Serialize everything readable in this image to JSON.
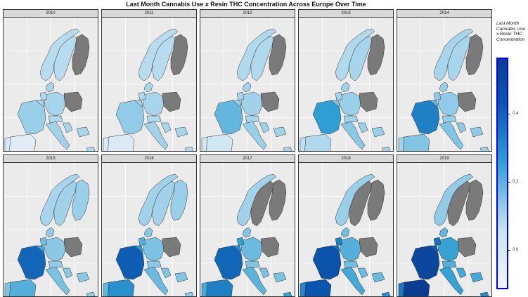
{
  "chart_data": {
    "type": "choropleth-facets",
    "title": "Last Month Cannabis Use x Resin THC Concentration Across Europe Over Time",
    "legend": {
      "title": "Last Month Cannabis Use x Resin THC Concentration",
      "ticks": [
        "0.0",
        "0.2",
        "0.4"
      ],
      "range": [
        -0.12,
        0.55
      ],
      "position": "right"
    },
    "no_data_color": "#7a7a7a",
    "countries": [
      "Norway",
      "Sweden",
      "Finland",
      "Denmark",
      "Germany",
      "Poland",
      "Netherlands",
      "Belgium",
      "France",
      "Austria",
      "Italy",
      "Spain",
      "Portugal",
      "Croatia",
      "Bulgaria",
      "Cyprus"
    ],
    "panels": [
      {
        "year": "2010",
        "values": {
          "Norway": 0.07,
          "Sweden": 0.07,
          "Finland": null,
          "Denmark": 0.09,
          "Germany": 0.09,
          "Poland": null,
          "Netherlands": 0.08,
          "Belgium": 0.09,
          "France": 0.11,
          "Austria": 0.08,
          "Italy": 0.1,
          "Spain": -0.05,
          "Portugal": -0.02,
          "Croatia": 0.09,
          "Bulgaria": 0.09,
          "Cyprus": 0.08
        }
      },
      {
        "year": "2011",
        "values": {
          "Norway": 0.07,
          "Sweden": 0.07,
          "Finland": null,
          "Denmark": 0.09,
          "Germany": 0.09,
          "Poland": null,
          "Netherlands": 0.08,
          "Belgium": 0.1,
          "France": 0.12,
          "Austria": 0.08,
          "Italy": 0.1,
          "Spain": -0.03,
          "Portugal": -0.01,
          "Croatia": 0.09,
          "Bulgaria": 0.09,
          "Cyprus": 0.08
        }
      },
      {
        "year": "2012",
        "values": {
          "Norway": 0.08,
          "Sweden": 0.08,
          "Finland": null,
          "Denmark": 0.1,
          "Germany": 0.1,
          "Poland": null,
          "Netherlands": 0.09,
          "Belgium": 0.11,
          "France": 0.18,
          "Austria": 0.09,
          "Italy": 0.11,
          "Spain": 0.02,
          "Portugal": 0.02,
          "Croatia": 0.1,
          "Bulgaria": 0.1,
          "Cyprus": 0.09
        }
      },
      {
        "year": "2013",
        "values": {
          "Norway": 0.08,
          "Sweden": 0.09,
          "Finland": null,
          "Denmark": 0.1,
          "Germany": 0.11,
          "Poland": null,
          "Netherlands": 0.1,
          "Belgium": 0.14,
          "France": 0.25,
          "Austria": 0.1,
          "Italy": 0.13,
          "Spain": 0.08,
          "Portugal": 0.06,
          "Croatia": 0.11,
          "Bulgaria": 0.11,
          "Cyprus": 0.1
        }
      },
      {
        "year": "2014",
        "values": {
          "Norway": 0.09,
          "Sweden": 0.09,
          "Finland": null,
          "Denmark": 0.11,
          "Germany": 0.12,
          "Poland": null,
          "Netherlands": 0.12,
          "Belgium": 0.18,
          "France": 0.32,
          "Austria": 0.11,
          "Italy": 0.14,
          "Spain": 0.14,
          "Portugal": 0.1,
          "Croatia": 0.12,
          "Bulgaria": 0.12,
          "Cyprus": 0.11
        }
      },
      {
        "year": "2015",
        "values": {
          "Norway": 0.09,
          "Sweden": 0.1,
          "Finland": 0.11,
          "Denmark": 0.12,
          "Germany": 0.13,
          "Poland": null,
          "Netherlands": 0.16,
          "Belgium": 0.22,
          "France": 0.38,
          "Austria": 0.12,
          "Italy": 0.15,
          "Spain": 0.2,
          "Portugal": 0.14,
          "Croatia": 0.13,
          "Bulgaria": 0.13,
          "Cyprus": 0.12
        }
      },
      {
        "year": "2016",
        "values": {
          "Norway": 0.1,
          "Sweden": 0.1,
          "Finland": 0.11,
          "Denmark": 0.13,
          "Germany": 0.15,
          "Poland": null,
          "Netherlands": 0.2,
          "Belgium": 0.26,
          "France": 0.4,
          "Austria": 0.13,
          "Italy": 0.17,
          "Spain": 0.28,
          "Portugal": 0.18,
          "Croatia": 0.14,
          "Bulgaria": 0.14,
          "Cyprus": 0.13
        }
      },
      {
        "year": "2017",
        "values": {
          "Norway": 0.1,
          "Sweden": null,
          "Finland": null,
          "Denmark": 0.14,
          "Germany": 0.17,
          "Poland": null,
          "Netherlands": 0.24,
          "Belgium": 0.28,
          "France": 0.38,
          "Austria": 0.14,
          "Italy": 0.19,
          "Spain": 0.32,
          "Portugal": 0.22,
          "Croatia": 0.15,
          "Bulgaria": 0.15,
          "Cyprus": 0.24
        }
      },
      {
        "year": "2018",
        "values": {
          "Norway": 0.11,
          "Sweden": null,
          "Finland": null,
          "Denmark": 0.16,
          "Germany": 0.2,
          "Poland": null,
          "Netherlands": 0.32,
          "Belgium": 0.36,
          "France": 0.44,
          "Austria": 0.16,
          "Italy": 0.22,
          "Spain": 0.42,
          "Portugal": 0.3,
          "Croatia": 0.17,
          "Bulgaria": 0.17,
          "Cyprus": 0.28
        }
      },
      {
        "year": "2019",
        "values": {
          "Norway": 0.12,
          "Sweden": null,
          "Finland": null,
          "Denmark": 0.18,
          "Germany": 0.24,
          "Poland": null,
          "Netherlands": 0.36,
          "Belgium": 0.4,
          "France": 0.5,
          "Austria": 0.2,
          "Italy": 0.24,
          "Spain": 0.55,
          "Portugal": 0.34,
          "Croatia": 0.22,
          "Bulgaria": 0.22,
          "Cyprus": 0.3
        }
      }
    ]
  }
}
